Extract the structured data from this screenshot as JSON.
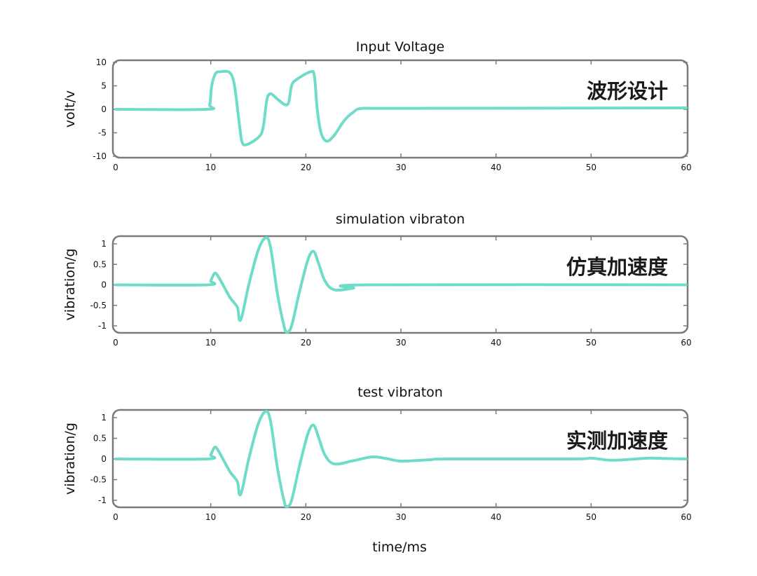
{
  "chart_data": [
    {
      "type": "line",
      "title": "Input Voltage",
      "xlabel": "",
      "ylabel": "volt/v",
      "annotation": "波形设计",
      "xlim": [
        0,
        60
      ],
      "ylim": [
        -10,
        10
      ],
      "xticks": [
        0,
        10,
        20,
        30,
        40,
        50,
        60
      ],
      "yticks": [
        10,
        5,
        0,
        -5,
        -10
      ],
      "grid": false,
      "color": "#6fdcca",
      "x": [
        0,
        9.5,
        9.9,
        10.1,
        10.5,
        11,
        12,
        12.5,
        13,
        13.3,
        13.8,
        15,
        15.5,
        15.9,
        16.3,
        17,
        17.8,
        18.2,
        18.5,
        19,
        20.5,
        20.9,
        21.2,
        21.6,
        22.2,
        23,
        24,
        25,
        26,
        30,
        60
      ],
      "y": [
        0,
        0,
        1,
        5,
        7.6,
        8,
        7.8,
        5,
        -3,
        -7,
        -7.5,
        -6,
        -4,
        2,
        3.3,
        2.2,
        1,
        1.5,
        5,
        6.3,
        8,
        7,
        0,
        -5,
        -6.8,
        -5.5,
        -2.5,
        -0.6,
        0.2,
        0.2,
        0.3
      ]
    },
    {
      "type": "line",
      "title": "simulation vibraton",
      "xlabel": "",
      "ylabel": "vibration/g",
      "annotation": "仿真加速度",
      "xlim": [
        0,
        60
      ],
      "ylim": [
        -1.2,
        1.2
      ],
      "xticks": [
        0,
        10,
        20,
        30,
        40,
        50,
        60
      ],
      "yticks": [
        1,
        0.5,
        0,
        -0.5,
        -1
      ],
      "grid": false,
      "color": "#6fdcca",
      "x": [
        0,
        9.6,
        10,
        10.4,
        10.8,
        12,
        12.8,
        13,
        13.3,
        14,
        15,
        15.8,
        16.3,
        17,
        17.7,
        18,
        18.5,
        19.3,
        20.2,
        20.8,
        21.3,
        22,
        23,
        25,
        26.5,
        60
      ],
      "y": [
        0,
        0,
        0.1,
        0.28,
        0.2,
        -0.3,
        -0.55,
        -0.85,
        -0.75,
        0,
        0.85,
        1.15,
        0.9,
        -0.2,
        -1.0,
        -1.15,
        -1.0,
        -0.2,
        0.6,
        0.82,
        0.55,
        0.1,
        -0.12,
        -0.08,
        0,
        0
      ]
    },
    {
      "type": "line",
      "title": "test vibraton",
      "xlabel": "time/ms",
      "ylabel": "vibration/g",
      "annotation": "实测加速度",
      "xlim": [
        0,
        60
      ],
      "ylim": [
        -1.2,
        1.2
      ],
      "xticks": [
        0,
        10,
        20,
        30,
        40,
        50,
        60
      ],
      "yticks": [
        1,
        0.5,
        0,
        -0.5,
        -1
      ],
      "grid": false,
      "color": "#6fdcca",
      "x": [
        0,
        9.6,
        10,
        10.4,
        10.8,
        12,
        12.8,
        13,
        13.3,
        14,
        15,
        15.8,
        16.3,
        17,
        17.7,
        18,
        18.5,
        19.3,
        20.2,
        20.8,
        21.3,
        22,
        23,
        25,
        27,
        28.5,
        30,
        33,
        35,
        48,
        50,
        52,
        54,
        56,
        58,
        60
      ],
      "y": [
        0,
        0,
        0.1,
        0.28,
        0.2,
        -0.3,
        -0.55,
        -0.85,
        -0.75,
        0,
        0.85,
        1.15,
        0.9,
        -0.2,
        -1.0,
        -1.15,
        -1.0,
        -0.2,
        0.6,
        0.82,
        0.55,
        0.1,
        -0.12,
        -0.04,
        0.05,
        0.01,
        -0.05,
        -0.02,
        0,
        0,
        0.02,
        -0.03,
        -0.01,
        0.02,
        0.01,
        0
      ]
    }
  ]
}
